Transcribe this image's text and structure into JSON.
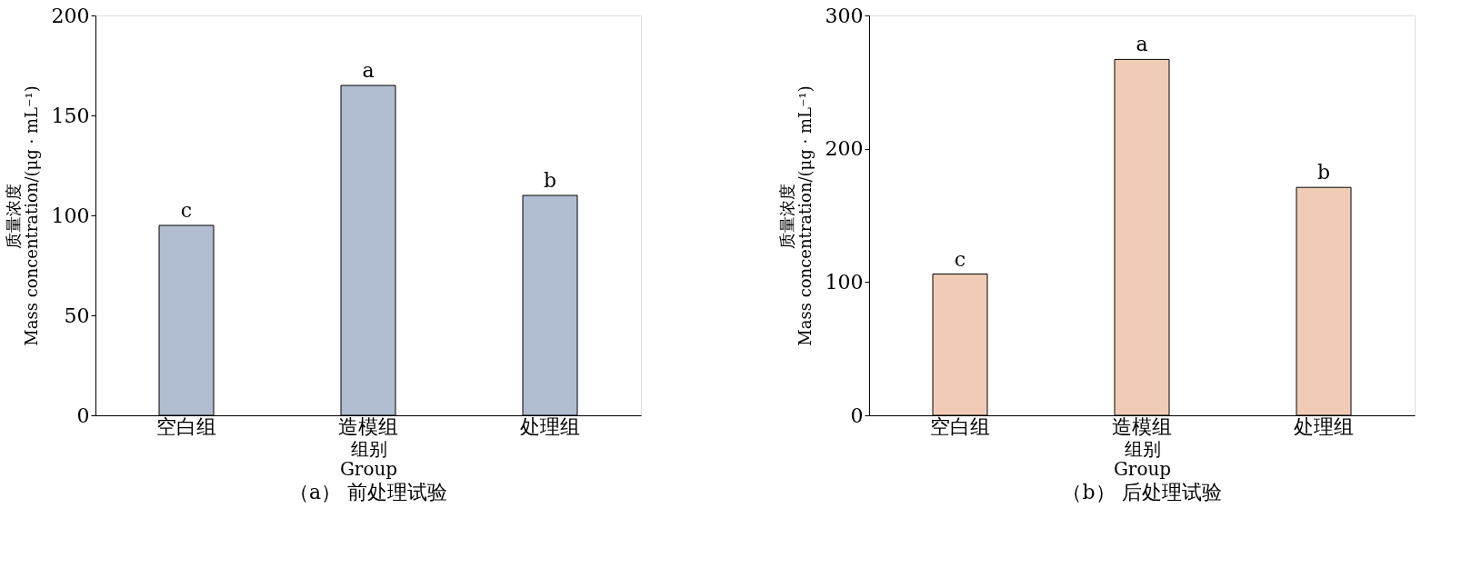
{
  "chart_data": [
    {
      "type": "bar",
      "title": "（a） 前处理试验",
      "xlabel": "组别\nGroup",
      "ylabel": "质量浓度\nMass concentration/(μg · mL⁻¹)",
      "categories": [
        "空白组",
        "造模组",
        "处理组"
      ],
      "values": [
        95,
        165,
        110
      ],
      "color": "#3c5a8c",
      "ylim": [
        0,
        200
      ],
      "yticks": [
        0,
        50,
        100,
        150,
        200
      ],
      "grid": false,
      "annotations": [
        {
          "text": "c",
          "x": "空白组",
          "y": 95
        },
        {
          "text": "a",
          "x": "造模组",
          "y": 165
        },
        {
          "text": "b",
          "x": "处理组",
          "y": 110
        }
      ]
    },
    {
      "type": "bar",
      "title": "（b） 后处理试验",
      "xlabel": "组别\nGroup",
      "ylabel": "质量浓度\nMass concentration/(μg · mL⁻¹)",
      "categories": [
        "空白组",
        "造模组",
        "处理组"
      ],
      "values": [
        106,
        267,
        171
      ],
      "color": "#d9804a",
      "ylim": [
        0,
        300
      ],
      "yticks": [
        0,
        100,
        200,
        300
      ],
      "grid": false,
      "annotations": [
        {
          "text": "c",
          "x": "空白组",
          "y": 106
        },
        {
          "text": "a",
          "x": "造模组",
          "y": 267
        },
        {
          "text": "b",
          "x": "处理组",
          "y": 171
        }
      ]
    }
  ]
}
